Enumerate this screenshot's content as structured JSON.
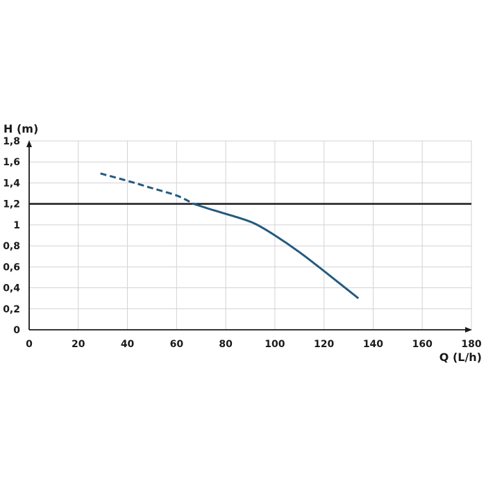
{
  "chart_data": {
    "type": "line",
    "title": "",
    "xlabel": "Q (L/h)",
    "ylabel": "H (m)",
    "xlim": [
      0,
      180
    ],
    "ylim": [
      0,
      1.8
    ],
    "x_ticks": [
      "0",
      "20",
      "40",
      "60",
      "80",
      "100",
      "120",
      "140",
      "160",
      "180"
    ],
    "y_ticks": [
      "0",
      "0,2",
      "0,4",
      "0,6",
      "0,8",
      "1",
      "1,2",
      "1,4",
      "1,6",
      "1,8"
    ],
    "grid": true,
    "reference_line": {
      "y": 1.2,
      "color": "#1a1a1a"
    },
    "series": [
      {
        "color": "#235a7f",
        "dashed_until_x": 67,
        "x": [
          29,
          40,
          50,
          60,
          67,
          75,
          85,
          92,
          100,
          110,
          120,
          134
        ],
        "y": [
          1.49,
          1.42,
          1.35,
          1.28,
          1.2,
          1.14,
          1.07,
          1.01,
          0.9,
          0.74,
          0.56,
          0.3
        ]
      }
    ]
  }
}
